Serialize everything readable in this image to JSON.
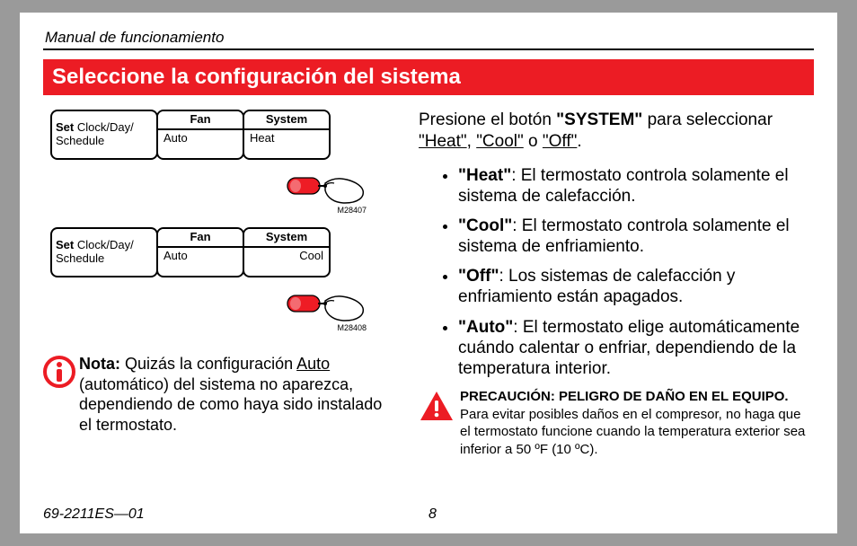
{
  "header": "Manual de funcionamiento",
  "titleBar": "Seleccione la configuración del sistema",
  "diagrams": [
    {
      "set_bold": "Set",
      "set_rest": " Clock/Day/\nSchedule",
      "fan_header": "Fan",
      "fan_value": "Auto",
      "sys_header": "System",
      "sys_value": "Heat",
      "sys_align": "left",
      "figno": "M28407"
    },
    {
      "set_bold": "Set",
      "set_rest": " Clock/Day/\nSchedule",
      "fan_header": "Fan",
      "fan_value": "Auto",
      "sys_header": "System",
      "sys_value": "Cool",
      "sys_align": "right",
      "figno": "M28408"
    }
  ],
  "note": {
    "label": "Nota:",
    "text": " Quizás la configuración Auto (automático) del sistema no aparezca, dependiendo de como haya sido instalado el termostato.",
    "underline_word": "Auto"
  },
  "intro": {
    "pre": "Presione el botón ",
    "button": "\"SYSTEM\"",
    "mid": " para seleccionar ",
    "opts": [
      "\"Heat\"",
      "\"Cool\"",
      "\"Off\""
    ],
    "joiners": [
      ", ",
      " o ",
      "."
    ]
  },
  "modes": [
    {
      "label": "\"Heat\"",
      "desc": ": El termostato controla solamente el sistema de calefacción."
    },
    {
      "label": "\"Cool\"",
      "desc": ": El termostato controla solamente el sistema de enfriamiento."
    },
    {
      "label": "\"Off\"",
      "desc": ": Los sistemas de calefacción y enfriamiento están apagados."
    },
    {
      "label": "\"Auto\"",
      "desc": ": El termostato elige automáticamente cuándo calentar o enfriar, dependiendo de la temperatura interior."
    }
  ],
  "warning": {
    "title": "PRECAUCIÓN: PELIGRO DE DAÑO EN EL EQUIPO.",
    "text": " Para evitar posibles daños en el compresor, no haga que el termostato funcione cuando la temperatura exterior sea inferior a 50 ºF (10 ºC)."
  },
  "footer": {
    "docnum": "69-2211ES—01",
    "pagenum": "8"
  },
  "colors": {
    "red": "#ec1c24",
    "button_red": "#ee1c25"
  }
}
